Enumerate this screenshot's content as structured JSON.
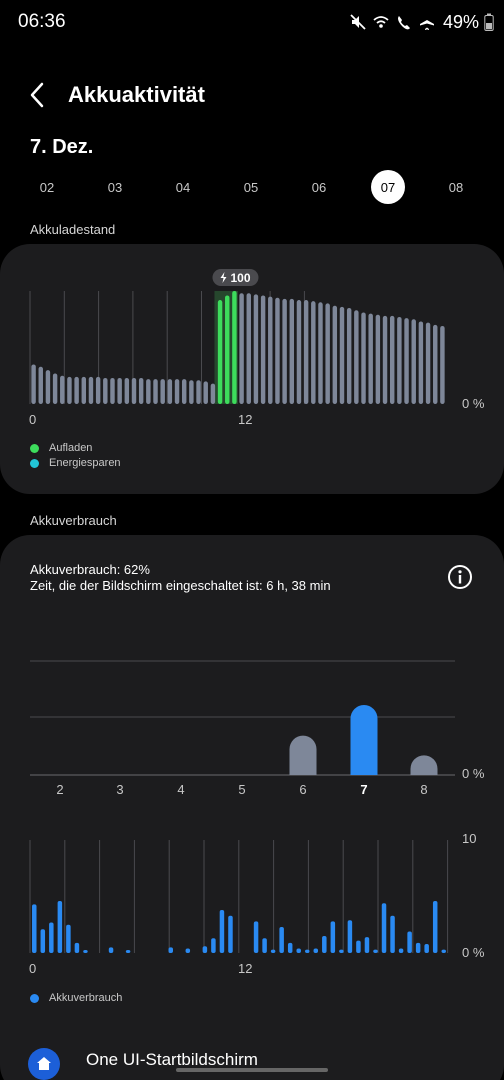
{
  "status_bar": {
    "time": "06:36",
    "battery_percent": "49%"
  },
  "header": {
    "title": "Akkuaktivität"
  },
  "date": {
    "label": "7. Dez.",
    "days": [
      "02",
      "03",
      "04",
      "05",
      "06",
      "07",
      "08"
    ],
    "selected_day": "07"
  },
  "battery_level": {
    "section_label": "Akkuladestand",
    "axis_zero": "0 %",
    "x_tick_0": "0",
    "x_tick_12": "12",
    "badge_value": "100",
    "legend": [
      {
        "label": "Aufladen",
        "color": "#3ddc5c"
      },
      {
        "label": "Energiesparen",
        "color": "#22c4d6"
      }
    ]
  },
  "battery_usage": {
    "section_label": "Akkuverbrauch",
    "usage_text": "Akkuverbrauch: 62%",
    "screen_time_text": "Zeit, die der Bildschirm eingeschaltet ist: 6 h, 38 min",
    "daily_axis_zero": "0 %",
    "hourly_axis_top": "10",
    "hourly_axis_zero": "0 %",
    "x_tick_0": "0",
    "x_tick_12": "12",
    "legend_label": "Akkuverbrauch"
  },
  "bottom_item": {
    "label": "One UI-Startbildschirm"
  },
  "colors": {
    "background": "#000000",
    "card": "#1c1c1e",
    "bar_gray": "#7e8799",
    "charging_green": "#3ddc5c",
    "usage_blue": "#2a8af2"
  },
  "chart_data": [
    {
      "type": "bar",
      "name": "battery_level_hourly",
      "x_ticks": [
        "0",
        "12"
      ],
      "ylim": [
        0,
        100
      ],
      "values": [
        35,
        33,
        30,
        27,
        25,
        24,
        24,
        24,
        24,
        24,
        23,
        23,
        23,
        23,
        23,
        23,
        22,
        22,
        22,
        22,
        22,
        22,
        21,
        21,
        20,
        18,
        92,
        96,
        100,
        98,
        98,
        97,
        96,
        95,
        94,
        93,
        93,
        92,
        92,
        91,
        90,
        89,
        87,
        86,
        85,
        83,
        81,
        80,
        79,
        78,
        78,
        77,
        76,
        75,
        73,
        72,
        70,
        69
      ],
      "charging_range": [
        26,
        28
      ],
      "annotation": "100"
    },
    {
      "type": "bar",
      "name": "daily_usage",
      "categories": [
        "2",
        "3",
        "4",
        "5",
        "6",
        "7",
        "8"
      ],
      "values": [
        0,
        0,
        0,
        0,
        18,
        32,
        9
      ],
      "highlight": "7"
    },
    {
      "type": "bar",
      "name": "hourly_usage",
      "x_ticks": [
        "0",
        "12"
      ],
      "ylim": [
        0,
        10
      ],
      "values": [
        4.3,
        2.1,
        2.7,
        4.6,
        2.5,
        0.9,
        0.2,
        0,
        0,
        0.5,
        0,
        0.2,
        0,
        0,
        0,
        0,
        0.5,
        0,
        0.4,
        0,
        0.6,
        1.3,
        3.8,
        3.3,
        0,
        0,
        2.8,
        1.3,
        0.3,
        2.3,
        0.9,
        0.4,
        0.3,
        0.4,
        1.5,
        2.8,
        0.3,
        2.9,
        1.1,
        1.4,
        0.3,
        4.4,
        3.3,
        0.4,
        1.9,
        0.9,
        0.8,
        4.6,
        0.3
      ]
    }
  ]
}
